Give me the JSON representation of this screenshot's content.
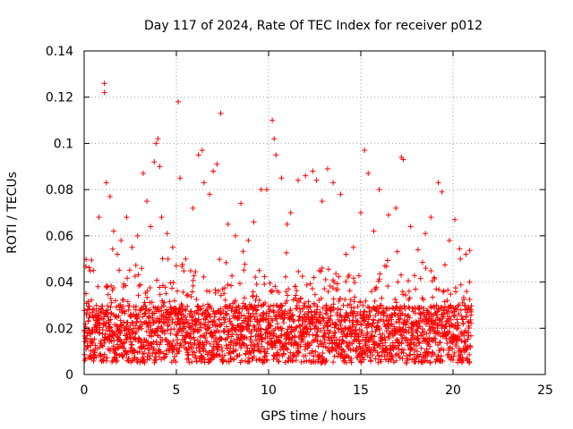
{
  "chart_data": {
    "type": "scatter",
    "title": "Day 117 of 2024, Rate Of TEC Index for receiver p012",
    "xlabel": "GPS time / hours",
    "ylabel": "ROTI / TECUs",
    "xlim": [
      0,
      25
    ],
    "ylim": [
      0,
      0.14
    ],
    "x_ticks": [
      "0",
      "5",
      "10",
      "15",
      "20",
      "25"
    ],
    "y_ticks": [
      "0",
      "0.02",
      "0.04",
      "0.06",
      "0.08",
      "0.1",
      "0.12",
      "0.14"
    ],
    "x_tick_values": [
      0,
      5,
      10,
      15,
      20,
      25
    ],
    "y_tick_values": [
      0,
      0.02,
      0.04,
      0.06,
      0.08,
      0.1,
      0.12,
      0.14
    ],
    "grid": true,
    "marker": "plus",
    "color": "#ff0000",
    "data_x_range": [
      0,
      21
    ],
    "series": [
      {
        "x": [
          0.1,
          0.3,
          0.5,
          0.8,
          1.1,
          1.1,
          1.2,
          1.4,
          1.6,
          1.8,
          2.0,
          2.3,
          2.6,
          2.9,
          3.2,
          3.4,
          3.6,
          3.8,
          3.9,
          4.0,
          4.1,
          4.2,
          4.5,
          4.8,
          5.1,
          5.2,
          5.5,
          5.9,
          6.2,
          6.4,
          6.5,
          6.8,
          7.0,
          7.2,
          7.4,
          7.8,
          8.2,
          8.5,
          8.9,
          9.2,
          9.6,
          9.9,
          10.2,
          10.3,
          10.4,
          10.7,
          11.0,
          11.2,
          11.6,
          12.0,
          12.4,
          12.6,
          12.9,
          13.2,
          13.5,
          13.9,
          14.2,
          14.6,
          15.0,
          15.2,
          15.4,
          15.7,
          16.0,
          16.5,
          16.9,
          17.2,
          17.3,
          17.7,
          18.1,
          18.5,
          18.8,
          19.2,
          19.4,
          19.8,
          20.1,
          20.4,
          20.7,
          20.9
        ],
        "y": [
          0.035,
          0.028,
          0.045,
          0.068,
          0.126,
          0.122,
          0.083,
          0.077,
          0.062,
          0.052,
          0.058,
          0.068,
          0.055,
          0.06,
          0.087,
          0.075,
          0.064,
          0.092,
          0.1,
          0.102,
          0.09,
          0.068,
          0.061,
          0.055,
          0.118,
          0.085,
          0.05,
          0.072,
          0.095,
          0.097,
          0.083,
          0.078,
          0.088,
          0.091,
          0.113,
          0.065,
          0.06,
          0.074,
          0.058,
          0.066,
          0.08,
          0.08,
          0.11,
          0.102,
          0.095,
          0.085,
          0.065,
          0.07,
          0.084,
          0.086,
          0.088,
          0.084,
          0.075,
          0.089,
          0.083,
          0.078,
          0.052,
          0.055,
          0.07,
          0.097,
          0.087,
          0.062,
          0.08,
          0.069,
          0.072,
          0.094,
          0.093,
          0.064,
          0.054,
          0.061,
          0.068,
          0.083,
          0.079,
          0.058,
          0.067,
          0.05,
          0.052,
          0.04
        ],
        "noise_floor": [
          0.005,
          0.03
        ]
      }
    ]
  }
}
